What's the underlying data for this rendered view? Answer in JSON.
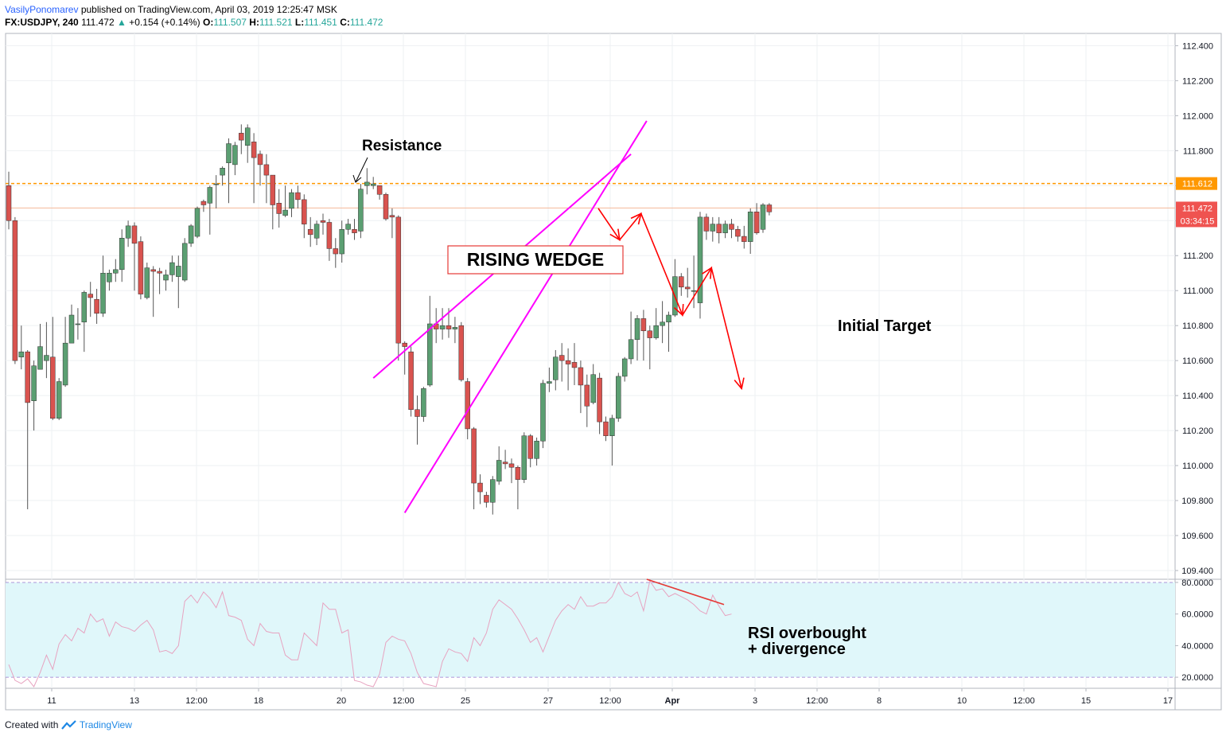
{
  "header": {
    "author": "VasilyPonomarev",
    "published": "published on TradingView.com, April 03, 2019 12:25:47 MSK",
    "symbol": "FX:USDJPY, 240",
    "last": "111.472",
    "change_arrow": "▲",
    "change": "+0.154 (+0.14%)",
    "o_label": "O:",
    "o_val": "111.507",
    "h_label": "H:",
    "h_val": "111.521",
    "l_label": "L:",
    "l_val": "111.451",
    "c_label": "C:",
    "c_val": "111.472"
  },
  "footer": {
    "created_with": "Created with",
    "brand": "TradingView"
  },
  "chart_data": [
    {
      "type": "candlestick",
      "title": "",
      "xlabel": "",
      "ylabel": "",
      "ylim": [
        109.35,
        112.47
      ],
      "x_tick_labels": [
        "11",
        "13",
        "12:00",
        "18",
        "20",
        "12:00",
        "25",
        "27",
        "12:00",
        "Apr",
        "3",
        "12:00",
        "8",
        "10",
        "12:00",
        "15",
        "17"
      ],
      "y_tick_labels": [
        "112.400",
        "112.200",
        "112.000",
        "111.800",
        "111.600",
        "111.400",
        "111.200",
        "111.000",
        "110.800",
        "110.600",
        "110.400",
        "110.200",
        "110.000",
        "109.800",
        "109.600",
        "109.400"
      ],
      "y_ticks": [
        112.4,
        112.2,
        112.0,
        111.8,
        111.6,
        111.4,
        111.2,
        111.0,
        110.8,
        110.6,
        110.4,
        110.2,
        110.0,
        109.8,
        109.6,
        109.4
      ],
      "candles": [
        [
          111.6,
          111.4,
          111.68,
          111.35
        ],
        [
          111.4,
          110.6,
          111.42,
          110.58
        ],
        [
          110.62,
          110.65,
          110.8,
          110.55
        ],
        [
          110.65,
          110.36,
          110.66,
          109.75
        ],
        [
          110.37,
          110.57,
          110.6,
          110.2
        ],
        [
          110.55,
          110.68,
          110.81,
          110.6
        ],
        [
          110.6,
          110.63,
          110.82,
          110.5
        ],
        [
          110.62,
          110.27,
          110.85,
          110.26
        ],
        [
          110.27,
          110.48,
          110.5,
          110.26
        ],
        [
          110.46,
          110.7,
          110.85,
          110.45
        ],
        [
          110.7,
          110.86,
          110.92,
          110.7
        ],
        [
          110.81,
          110.81,
          110.9,
          110.72
        ],
        [
          110.82,
          110.99,
          111.0,
          110.65
        ],
        [
          110.98,
          110.96,
          111.05,
          110.85
        ],
        [
          110.95,
          110.87,
          111.01,
          110.81
        ],
        [
          110.87,
          111.1,
          111.2,
          110.85
        ],
        [
          111.05,
          111.1,
          111.12,
          111.0
        ],
        [
          111.1,
          111.12,
          111.18,
          111.05
        ],
        [
          111.12,
          111.3,
          111.35,
          111.05
        ],
        [
          111.3,
          111.37,
          111.4,
          111.25
        ],
        [
          111.37,
          111.27,
          111.39,
          111.0
        ],
        [
          111.28,
          110.98,
          111.31,
          110.95
        ],
        [
          110.96,
          111.13,
          111.16,
          110.95
        ],
        [
          111.12,
          111.11,
          111.14,
          110.85
        ],
        [
          111.11,
          111.1,
          111.13,
          110.98
        ],
        [
          111.06,
          111.09,
          111.12,
          111.0
        ],
        [
          111.09,
          111.16,
          111.2,
          111.05
        ],
        [
          111.08,
          111.14,
          111.2,
          110.9
        ],
        [
          111.06,
          111.27,
          111.3,
          111.05
        ],
        [
          111.27,
          111.37,
          111.38,
          111.25
        ],
        [
          111.31,
          111.47,
          111.48,
          111.3
        ],
        [
          111.51,
          111.49,
          111.52,
          111.45
        ],
        [
          111.5,
          111.59,
          111.6,
          111.32
        ],
        [
          111.61,
          111.61,
          111.66,
          111.47
        ],
        [
          111.66,
          111.7,
          111.71,
          111.6
        ],
        [
          111.73,
          111.84,
          111.87,
          111.5
        ],
        [
          111.72,
          111.83,
          111.85,
          111.66
        ],
        [
          111.9,
          111.86,
          111.95,
          111.78
        ],
        [
          111.83,
          111.93,
          111.95,
          111.73
        ],
        [
          111.85,
          111.76,
          111.9,
          111.5
        ],
        [
          111.78,
          111.72,
          111.8,
          111.6
        ],
        [
          111.72,
          111.66,
          111.78,
          111.5
        ],
        [
          111.66,
          111.49,
          111.66,
          111.35
        ],
        [
          111.5,
          111.44,
          111.58,
          111.36
        ],
        [
          111.43,
          111.46,
          111.6,
          111.42
        ],
        [
          111.47,
          111.56,
          111.58,
          111.42
        ],
        [
          111.56,
          111.52,
          111.6,
          111.47
        ],
        [
          111.52,
          111.38,
          111.55,
          111.3
        ],
        [
          111.35,
          111.32,
          111.42,
          111.25
        ],
        [
          111.3,
          111.38,
          111.4,
          111.26
        ],
        [
          111.4,
          111.39,
          111.44,
          111.32
        ],
        [
          111.39,
          111.24,
          111.41,
          111.17
        ],
        [
          111.24,
          111.21,
          111.3,
          111.13
        ],
        [
          111.21,
          111.35,
          111.4,
          111.16
        ],
        [
          111.35,
          111.38,
          111.41,
          111.32
        ],
        [
          111.35,
          111.33,
          111.41,
          111.29
        ],
        [
          111.34,
          111.58,
          111.61,
          111.3
        ],
        [
          111.6,
          111.62,
          111.7,
          111.55
        ],
        [
          111.6,
          111.61,
          111.65,
          111.58
        ],
        [
          111.6,
          111.55,
          111.6,
          111.52
        ],
        [
          111.55,
          111.41,
          111.56,
          111.4
        ],
        [
          111.43,
          111.42,
          111.47,
          111.3
        ],
        [
          111.42,
          110.7,
          111.43,
          110.6
        ],
        [
          110.7,
          110.68,
          110.71,
          110.52
        ],
        [
          110.65,
          110.32,
          110.68,
          110.28
        ],
        [
          110.32,
          110.28,
          110.4,
          110.12
        ],
        [
          110.28,
          110.44,
          110.45,
          110.25
        ],
        [
          110.46,
          110.81,
          110.97,
          110.45
        ],
        [
          110.81,
          110.78,
          110.9,
          110.7
        ],
        [
          110.78,
          110.8,
          110.9,
          110.72
        ],
        [
          110.8,
          110.78,
          110.9,
          110.73
        ],
        [
          110.78,
          110.79,
          110.85,
          110.7
        ],
        [
          110.8,
          110.49,
          110.82,
          110.48
        ],
        [
          110.48,
          110.21,
          110.5,
          110.15
        ],
        [
          110.21,
          109.9,
          110.22,
          109.75
        ],
        [
          109.9,
          109.85,
          109.95,
          109.78
        ],
        [
          109.83,
          109.79,
          109.85,
          109.76
        ],
        [
          109.79,
          109.92,
          109.94,
          109.72
        ],
        [
          109.91,
          110.03,
          110.11,
          109.89
        ],
        [
          110.02,
          110.01,
          110.09,
          109.98
        ],
        [
          110.01,
          109.99,
          110.04,
          109.9
        ],
        [
          109.99,
          109.92,
          110.0,
          109.75
        ],
        [
          109.92,
          110.17,
          110.19,
          109.9
        ],
        [
          110.17,
          110.04,
          110.18,
          109.99
        ],
        [
          110.04,
          110.14,
          110.16,
          110.0
        ],
        [
          110.14,
          110.47,
          110.49,
          110.1
        ],
        [
          110.47,
          110.48,
          110.56,
          110.42
        ],
        [
          110.49,
          110.62,
          110.66,
          110.43
        ],
        [
          110.63,
          110.6,
          110.7,
          110.48
        ],
        [
          110.6,
          110.58,
          110.67,
          110.43
        ],
        [
          110.59,
          110.56,
          110.7,
          110.46
        ],
        [
          110.56,
          110.46,
          110.6,
          110.3
        ],
        [
          110.46,
          110.34,
          110.52,
          110.22
        ],
        [
          110.36,
          110.52,
          110.58,
          110.35
        ],
        [
          110.5,
          110.25,
          110.53,
          110.18
        ],
        [
          110.25,
          110.17,
          110.28,
          110.14
        ],
        [
          110.17,
          110.27,
          110.29,
          110.0
        ],
        [
          110.27,
          110.51,
          110.53,
          110.25
        ],
        [
          110.51,
          110.61,
          110.62,
          110.48
        ],
        [
          110.61,
          110.72,
          110.88,
          110.58
        ],
        [
          110.72,
          110.84,
          110.86,
          110.6
        ],
        [
          110.84,
          110.77,
          110.89,
          110.6
        ],
        [
          110.77,
          110.73,
          110.8,
          110.55
        ],
        [
          110.73,
          110.8,
          110.9,
          110.72
        ],
        [
          110.8,
          110.82,
          110.94,
          110.7
        ],
        [
          110.82,
          110.86,
          110.88,
          110.65
        ],
        [
          110.86,
          111.08,
          111.18,
          110.85
        ],
        [
          111.08,
          111.02,
          111.1,
          110.97
        ],
        [
          111.02,
          111.01,
          111.13,
          110.96
        ],
        [
          111.0,
          111.0,
          111.2,
          110.9
        ],
        [
          110.93,
          111.42,
          111.45,
          110.84
        ],
        [
          111.42,
          111.34,
          111.44,
          111.29
        ],
        [
          111.34,
          111.38,
          111.42,
          111.28
        ],
        [
          111.38,
          111.33,
          111.42,
          111.27
        ],
        [
          111.33,
          111.38,
          111.4,
          111.3
        ],
        [
          111.38,
          111.35,
          111.41,
          111.3
        ],
        [
          111.35,
          111.31,
          111.37,
          111.28
        ],
        [
          111.31,
          111.28,
          111.37,
          111.24
        ],
        [
          111.28,
          111.45,
          111.47,
          111.21
        ],
        [
          111.45,
          111.33,
          111.5,
          111.32
        ],
        [
          111.35,
          111.49,
          111.5,
          111.33
        ],
        [
          111.49,
          111.45,
          111.5,
          111.43
        ]
      ],
      "last_price": "111.472",
      "last_price_countdown": "03:34:15",
      "resistance_level": 111.612,
      "resistance_label": "111.612",
      "wedge_upper": [
        [
          58,
          110.5
        ],
        [
          99,
          111.78
        ]
      ],
      "wedge_lower": [
        [
          63,
          109.73
        ],
        [
          101.5,
          111.97
        ]
      ],
      "projection_path": [
        [
          93.8,
          111.47
        ],
        [
          97.2,
          111.29
        ],
        [
          100.6,
          111.44
        ],
        [
          107.2,
          110.86
        ],
        [
          111.8,
          111.13
        ],
        [
          116.6,
          110.44
        ]
      ],
      "annotations": {
        "resistance": "Resistance",
        "pattern": "RISING WEDGE",
        "target": "Initial Target",
        "rsi_note_line1": "RSI overbought",
        "rsi_note_line2": "+ divergence"
      }
    },
    {
      "type": "line",
      "title": "",
      "ylim": [
        13,
        82
      ],
      "y_tick_labels": [
        "80.0000",
        "60.0000",
        "40.0000",
        "20.0000"
      ],
      "y_ticks": [
        80,
        60,
        40,
        20
      ],
      "band": [
        20,
        80
      ],
      "series": [
        {
          "values": [
            28,
            18,
            16,
            19,
            14,
            23,
            34,
            25,
            41,
            47,
            43,
            51,
            48,
            60,
            55,
            57,
            46,
            55,
            52,
            51,
            49,
            53,
            56,
            50,
            36,
            37,
            35,
            40,
            68,
            72,
            67,
            74,
            70,
            64,
            74,
            59,
            58,
            56,
            44,
            40,
            54,
            49,
            48,
            48,
            34,
            31,
            31,
            48,
            44,
            40,
            67,
            63,
            63,
            48,
            50,
            18,
            17,
            15,
            14,
            22,
            42,
            46,
            44,
            43,
            35,
            23,
            16,
            15,
            14,
            30,
            38,
            36,
            35,
            30,
            45,
            40,
            48,
            63,
            69,
            66,
            63,
            57,
            50,
            42,
            45,
            36,
            46,
            56,
            62,
            66,
            63,
            71,
            65,
            65,
            67,
            67,
            71,
            80,
            73,
            71,
            74,
            62,
            81,
            75,
            76,
            71,
            73,
            71,
            69,
            66,
            62,
            60,
            72,
            65,
            59,
            60
          ]
        }
      ],
      "divergence_line": [
        [
          101.5,
          82
        ],
        [
          113.8,
          66
        ]
      ]
    }
  ]
}
